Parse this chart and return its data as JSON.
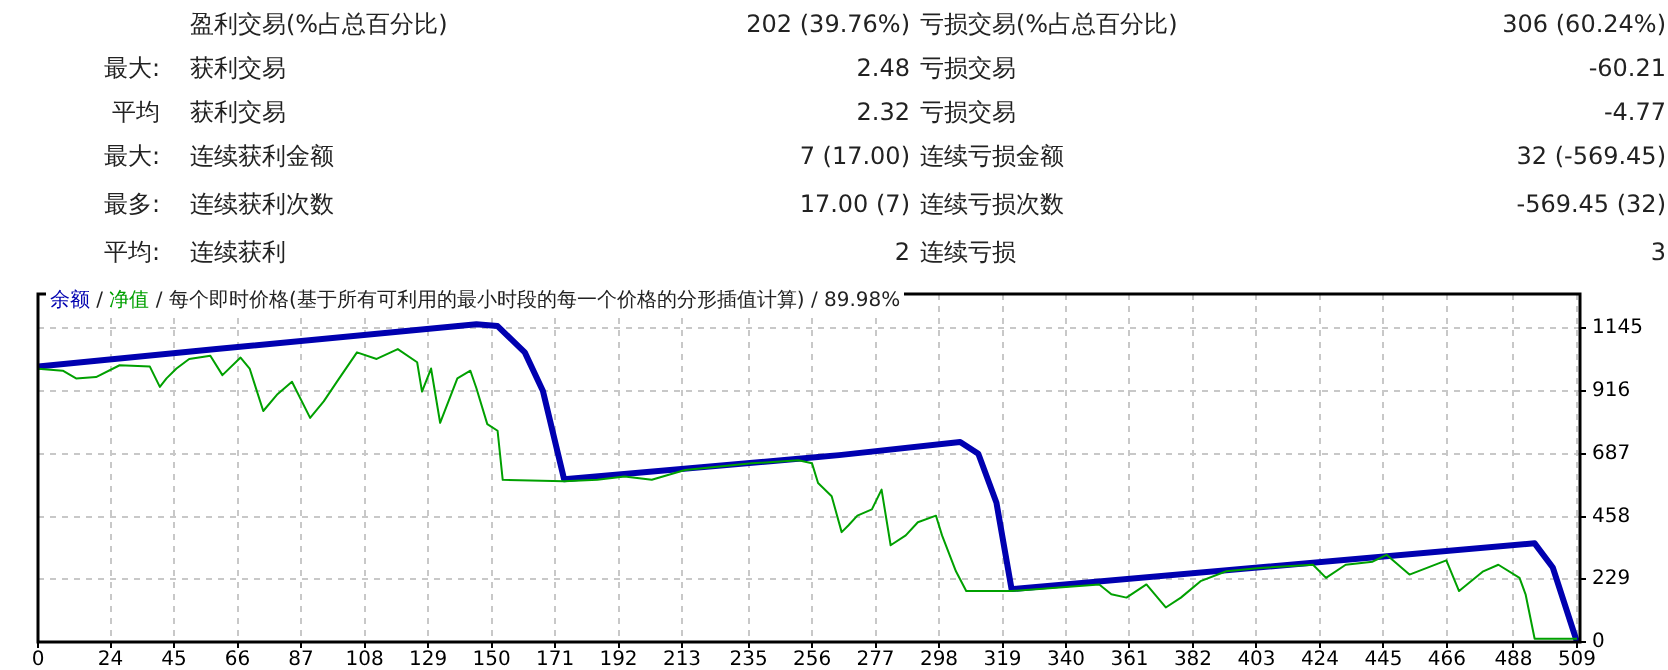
{
  "chart_data": {
    "type": "line",
    "title": "/ 每个即时价格(基于所有可利用的最小时段的每一个价格的分形插值计算) / 89.98%",
    "legend": "top left",
    "grid": true,
    "marker": "none",
    "xlim": [
      0,
      510
    ],
    "xticks": [
      0,
      24,
      45,
      66,
      87,
      108,
      129,
      150,
      171,
      192,
      213,
      235,
      256,
      277,
      298,
      319,
      340,
      361,
      382,
      403,
      424,
      445,
      466,
      488,
      509
    ],
    "ylim": [
      0,
      1270
    ],
    "yticks": [
      0,
      229,
      458,
      687,
      916,
      1145
    ],
    "annotations": [
      "盈利交易(%占总百分比)",
      "202 (39.76%)",
      "亏损交易(%占总百分比)",
      "306 (60.24%)",
      "最大:",
      "获利交易",
      "2.48",
      "亏损交易",
      "-60.21",
      "平均",
      "获利交易",
      "2.32",
      "亏损交易",
      "-4.77",
      "最大:",
      "连续获利金额",
      "7 (17.00)",
      "连续亏损金额",
      "32 (-569.45)",
      "最多:",
      "连续获利次数",
      "17.00 (7)",
      "连续亏损次数",
      "-569.45 (32)",
      "平均:",
      "连续获利",
      "2",
      "连续亏损",
      "3",
      "/"
    ],
    "series": [
      {
        "name": "余额",
        "color": "#0000b0",
        "x": [
          0,
          59,
          145,
          152,
          161,
          167,
          174,
          258,
          265,
          305,
          311,
          317,
          322,
          495,
          501,
          509
        ],
        "values": [
          1005,
          1069,
          1160,
          1153,
          1057,
          916,
          594,
          675,
          682,
          730,
          687,
          508,
          193,
          360,
          272,
          0
        ]
      },
      {
        "name": "净值",
        "color": "#00a000",
        "x": [
          0,
          8.2,
          12.6,
          19.2,
          27,
          37,
          40.3,
          42.5,
          45.8,
          50,
          57,
          61,
          67,
          70,
          74.5,
          79,
          84,
          90,
          94.5,
          99,
          105.5,
          112,
          119,
          125.4,
          127,
          130,
          133,
          138.7,
          143,
          145,
          148.6,
          152,
          153.7,
          174,
          185,
          194,
          203,
          214,
          236,
          251.5,
          256,
          258,
          262.5,
          265.8,
          268,
          271,
          275.8,
          279,
          282,
          287,
          291,
          297,
          299,
          303.6,
          307,
          322,
          351,
          355,
          360,
          366.6,
          373,
          378,
          384.5,
          393,
          404,
          421.7,
          426,
          432.5,
          441.4,
          446,
          453.6,
          465.8,
          470,
          478,
          483,
          490,
          492,
          495,
          509
        ],
        "values": [
          997,
          990,
          962,
          967,
          1010,
          1005,
          931,
          962,
          998,
          1033,
          1045,
          974,
          1038,
          998,
          843,
          902,
          950,
          818,
          878,
          952,
          1057,
          1033,
          1069,
          1021,
          914,
          998,
          800,
          962,
          990,
          926,
          795,
          771,
          592,
          587,
          592,
          604,
          592,
          628,
          652,
          663,
          652,
          580,
          532,
          401,
          425,
          461,
          484,
          556,
          353,
          389,
          437,
          461,
          389,
          258,
          186,
          186,
          210,
          174,
          162,
          210,
          126,
          162,
          222,
          258,
          270,
          282,
          234,
          282,
          293,
          318,
          246,
          298,
          186,
          258,
          282,
          234,
          174,
          12,
          12
        ]
      }
    ]
  }
}
